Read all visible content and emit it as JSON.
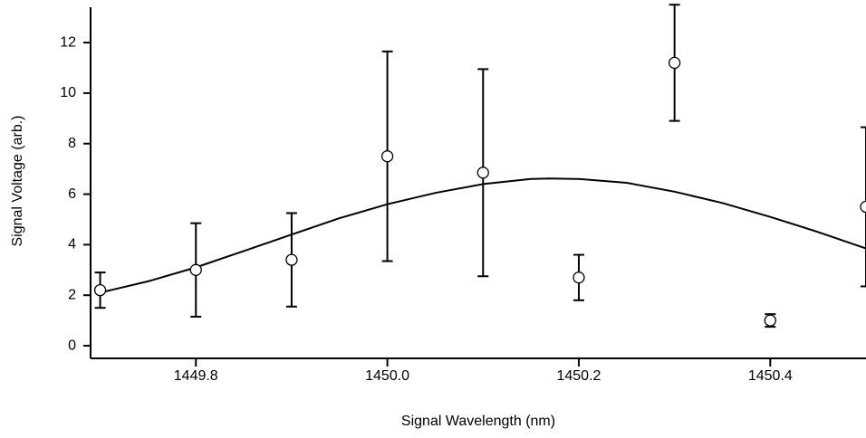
{
  "chart_data": {
    "type": "scatter",
    "x_label": "Signal Wavelength (nm)",
    "y_label": "Signal Voltage (arb.)",
    "xlim": [
      1449.69,
      1450.5
    ],
    "ylim": [
      -0.5,
      13.4
    ],
    "xticks": [
      1449.8,
      {
        "value": 1450.0,
        "label": "1450.0"
      },
      1450.2,
      1450.4
    ],
    "yticks": [
      0,
      2,
      4,
      6,
      8,
      10,
      12
    ],
    "series": [
      {
        "type": "scatter",
        "color": "#000000",
        "x": [
          1449.7,
          1449.8,
          1449.9,
          1450.0,
          1450.1,
          1450.2,
          1450.3,
          1450.4,
          1450.5
        ],
        "values": [
          2.2,
          3.0,
          3.4,
          7.5,
          6.85,
          2.7,
          11.2,
          1.0,
          5.5
        ],
        "errors": [
          0.7,
          1.85,
          1.85,
          4.15,
          4.1,
          0.9,
          2.3,
          0.25,
          3.15
        ]
      },
      {
        "type": "line",
        "color": "#000000",
        "x": [
          1449.7,
          1449.75,
          1449.8,
          1449.85,
          1449.9,
          1449.95,
          1450.0,
          1450.05,
          1450.1,
          1450.15,
          1450.17,
          1450.2,
          1450.25,
          1450.3,
          1450.35,
          1450.4,
          1450.45,
          1450.5
        ],
        "values": [
          2.1,
          2.55,
          3.1,
          3.75,
          4.4,
          5.05,
          5.6,
          6.05,
          6.4,
          6.6,
          6.62,
          6.6,
          6.45,
          6.1,
          5.65,
          5.1,
          4.5,
          3.85
        ]
      }
    ]
  }
}
